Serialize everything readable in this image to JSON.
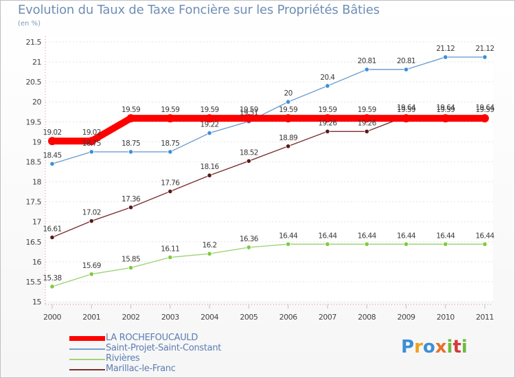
{
  "chart_data": {
    "type": "line",
    "title": "Evolution du Taux de Taxe Foncière sur les Propriétés Bâties",
    "ylabel": "(en %)",
    "xlabel": "",
    "ylim": [
      15,
      21.5
    ],
    "yticks": [
      "15",
      "15.5",
      "16",
      "16.5",
      "17",
      "17.5",
      "18",
      "18.5",
      "19",
      "19.5",
      "20",
      "20.5",
      "21",
      "21.5"
    ],
    "categories": [
      "2000",
      "2001",
      "2002",
      "2003",
      "2004",
      "2005",
      "2006",
      "2007",
      "2008",
      "2009",
      "2010",
      "2011"
    ],
    "series": [
      {
        "name": "Saint-Projet-Saint-Constant",
        "color": "#6d9fd0",
        "marker_color": "#3b8fd6",
        "values": [
          18.45,
          18.75,
          18.75,
          18.75,
          19.22,
          19.51,
          20,
          20.4,
          20.81,
          20.81,
          21.12,
          21.12
        ],
        "labels": [
          "18.45",
          "18.75",
          "18.75",
          "18.75",
          "19.22",
          "19.51",
          "20",
          "20.4",
          "20.81",
          "20.81",
          "21.12",
          "21.12"
        ]
      },
      {
        "name": "Rivières",
        "color": "#9fd47a",
        "marker_color": "#7ccc3c",
        "values": [
          15.38,
          15.69,
          15.85,
          16.11,
          16.2,
          16.36,
          16.44,
          16.44,
          16.44,
          16.44,
          16.44,
          16.44
        ],
        "labels": [
          "15.38",
          "15.69",
          "15.85",
          "16.11",
          "16.2",
          "16.36",
          "16.44",
          "16.44",
          "16.44",
          "16.44",
          "16.44",
          "16.44"
        ]
      },
      {
        "name": "Marillac-le-Franc",
        "color": "#7b2e2e",
        "marker_color": "#5a1a1a",
        "values": [
          16.61,
          17.02,
          17.36,
          17.76,
          18.16,
          18.52,
          18.89,
          19.26,
          19.26,
          19.64,
          19.64,
          19.64
        ],
        "labels": [
          "16.61",
          "17.02",
          "17.36",
          "17.76",
          "18.16",
          "18.52",
          "18.89",
          "19.26",
          "19.26",
          "19.64",
          "19.64",
          "19.64"
        ]
      },
      {
        "name": "LA ROCHEFOUCAULD",
        "color": "#ff0000",
        "marker_color": "#ff0000",
        "values": [
          19.02,
          19.02,
          19.59,
          19.59,
          19.59,
          19.59,
          19.59,
          19.59,
          19.59,
          19.59,
          19.59,
          19.59
        ],
        "labels": [
          "19.02",
          "19.02",
          "19.59",
          "19.59",
          "19.59",
          "19.59",
          "19.59",
          "19.59",
          "19.59",
          "19.59",
          "19.59",
          "19.59"
        ]
      }
    ],
    "legend": [
      {
        "name": "LA ROCHEFOUCAULD",
        "color": "#ff0000"
      },
      {
        "name": "Saint-Projet-Saint-Constant",
        "color": "#6d9fd0"
      },
      {
        "name": "Rivières",
        "color": "#9fd47a"
      },
      {
        "name": "Marillac-le-Franc",
        "color": "#7b2e2e"
      }
    ]
  },
  "logo": {
    "letters": [
      "P",
      "r",
      "o",
      "x",
      "i",
      "t",
      "i"
    ]
  }
}
